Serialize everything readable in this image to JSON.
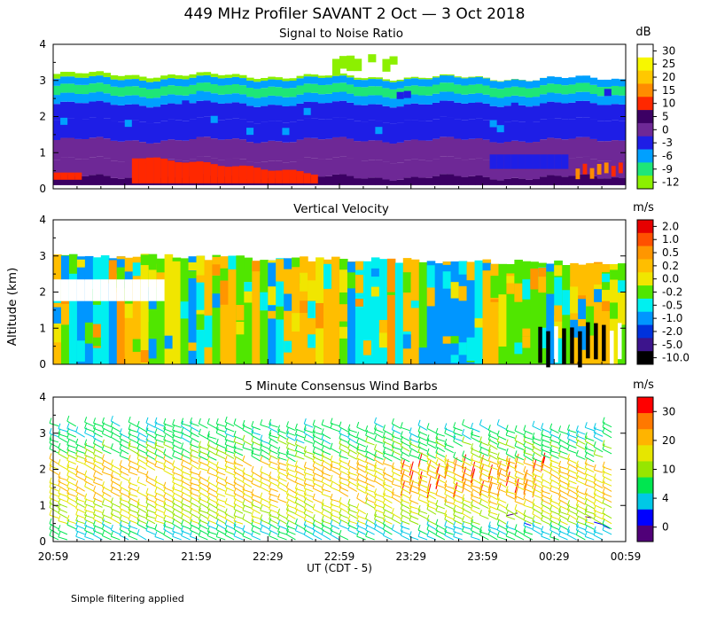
{
  "title": "449 MHz Profiler SAVANT  2 Oct —  3 Oct 2018",
  "footnote": "Simple filtering applied",
  "y_axis_label": "Altitude (km)",
  "x_axis_label": "UT  (CDT - 5)",
  "x_ticks": [
    "20:59",
    "21:29",
    "21:59",
    "22:29",
    "22:59",
    "23:29",
    "23:59",
    "00:29",
    "00:59"
  ],
  "chart_data": [
    {
      "type": "heatmap",
      "title": "Signal to Noise Ratio",
      "unit": "dB",
      "ylabel": "Altitude (km)",
      "ylim": [
        0,
        4
      ],
      "y_ticks": [
        "0",
        "1",
        "2",
        "3",
        "4"
      ],
      "colorbar_ticks": [
        "30",
        "25",
        "20",
        "15",
        "10",
        "5",
        "0",
        "-3",
        "-6",
        "-9",
        "-12"
      ],
      "colors": [
        "#ffffff",
        "#f7f700",
        "#ffc800",
        "#ff8c00",
        "#ff2800",
        "#3c0064",
        "#6e2896",
        "#1e1ee6",
        "#00a0ff",
        "#1ee678",
        "#8cf000"
      ],
      "layers": [
        {
          "min_km": 0.1,
          "max_km": 0.3,
          "snr_db": "5 to 10"
        },
        {
          "min_km": 0.3,
          "max_km": 1.3,
          "snr_db": "0 to 5"
        },
        {
          "min_km": 1.3,
          "max_km": 2.4,
          "snr_db": "-3 to 0"
        },
        {
          "min_km": 2.4,
          "max_km": 3.2,
          "snr_db": "-12 to -3"
        }
      ]
    },
    {
      "type": "heatmap",
      "title": "Vertical Velocity",
      "unit": "m/s",
      "ylabel": "Altitude (km)",
      "ylim": [
        0,
        4
      ],
      "y_ticks": [
        "0",
        "1",
        "2",
        "3",
        "4"
      ],
      "colorbar_ticks": [
        "2.0",
        "1.0",
        "0.5",
        "0.2",
        "0.0",
        "-0.2",
        "-0.5",
        "-1.0",
        "-2.0",
        "-5.0",
        "-10.0"
      ],
      "colors": [
        "#e60000",
        "#ff5000",
        "#ff9600",
        "#ffbe00",
        "#f0e600",
        "#50e600",
        "#00f0f0",
        "#0096ff",
        "#0032dc",
        "#3c148c",
        "#000000"
      ],
      "data_top_km": 3.1
    },
    {
      "type": "scatter",
      "title": "5 Minute Consensus Wind Barbs",
      "unit": "m/s",
      "ylabel": "Altitude (km)",
      "ylim": [
        0,
        4
      ],
      "y_ticks": [
        "0",
        "1",
        "2",
        "3",
        "4"
      ],
      "colorbar_ticks": [
        "30",
        "20",
        "10",
        "4",
        "0"
      ],
      "colors": [
        "#ff0000",
        "#ff7800",
        "#ffb400",
        "#e6e600",
        "#96e600",
        "#00e650",
        "#00c8e6",
        "#0000ff",
        "#500078"
      ],
      "data_top_km": 3.2
    }
  ]
}
